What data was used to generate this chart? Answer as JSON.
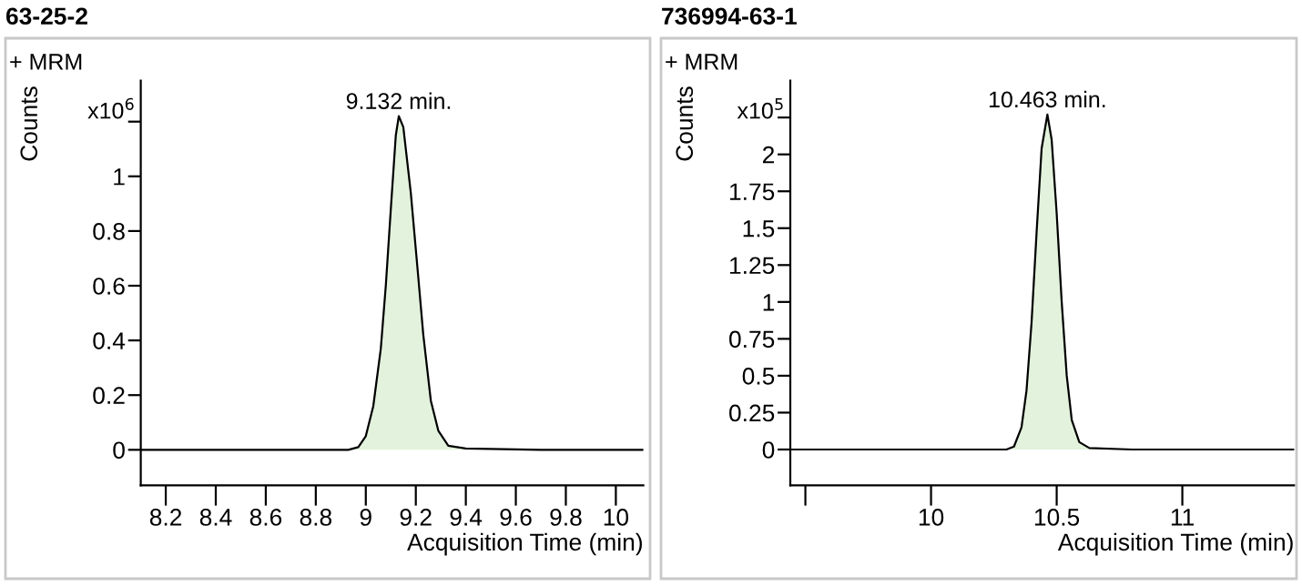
{
  "chart_data": [
    {
      "type": "area",
      "title": "63-25-2",
      "xlabel": "Acquisition Time (min)",
      "ylabel": "Counts",
      "annotations": [
        "+ MRM",
        "x10$^{6}$",
        {
          "text": "9.132 min.",
          "x": 9.132,
          "y": 1.22
        }
      ],
      "series": [
        {
          "color": "#e2f2dc",
          "x": [
            8.1,
            8.93,
            8.97,
            9.0,
            9.03,
            9.06,
            9.08,
            9.1,
            9.12,
            9.132,
            9.15,
            9.18,
            9.21,
            9.23,
            9.26,
            9.29,
            9.33,
            9.4,
            9.7,
            10.11
          ],
          "values": [
            0,
            0,
            0.01,
            0.05,
            0.16,
            0.37,
            0.6,
            0.88,
            1.15,
            1.22,
            1.18,
            0.94,
            0.63,
            0.42,
            0.18,
            0.07,
            0.015,
            0.005,
            0,
            0
          ]
        }
      ],
      "xlim": [
        8.1,
        10.11
      ],
      "xticks": [
        8.2,
        8.4,
        8.6,
        8.8,
        9,
        9.2,
        9.4,
        9.6,
        9.8,
        10
      ],
      "ylim": [
        -0.13,
        1.35
      ],
      "yticks": [
        0,
        0.2,
        0.4,
        0.6,
        0.8,
        1,
        {
          "value": 1.2,
          "label": null
        }
      ],
      "grid": false,
      "legend": false
    },
    {
      "type": "area",
      "title": "736994-63-1",
      "xlabel": "Acquisition Time (min)",
      "ylabel": "Counts",
      "annotations": [
        "+ MRM",
        "x10$^{5}$",
        {
          "text": "10.463 min.",
          "x": 10.463,
          "y": 2.27
        }
      ],
      "series": [
        {
          "color": "#e2f2dc",
          "x": [
            9.44,
            10.3,
            10.33,
            10.36,
            10.38,
            10.4,
            10.42,
            10.44,
            10.463,
            10.48,
            10.5,
            10.52,
            10.54,
            10.56,
            10.59,
            10.63,
            10.8,
            11.445
          ],
          "values": [
            0,
            0,
            0.02,
            0.15,
            0.4,
            0.86,
            1.47,
            2.04,
            2.27,
            2.1,
            1.6,
            1.0,
            0.5,
            0.2,
            0.05,
            0.01,
            0,
            0
          ]
        }
      ],
      "xlim": [
        9.44,
        11.445
      ],
      "xticks": [
        {
          "value": 9.5,
          "label": null
        },
        10,
        10.5,
        11
      ],
      "ylim": [
        -0.243,
        2.5
      ],
      "yticks": [
        0,
        0.25,
        0.5,
        0.75,
        1,
        1.25,
        1.5,
        1.75,
        2,
        {
          "value": 2.25,
          "label": null
        }
      ],
      "grid": false,
      "legend": false
    }
  ]
}
